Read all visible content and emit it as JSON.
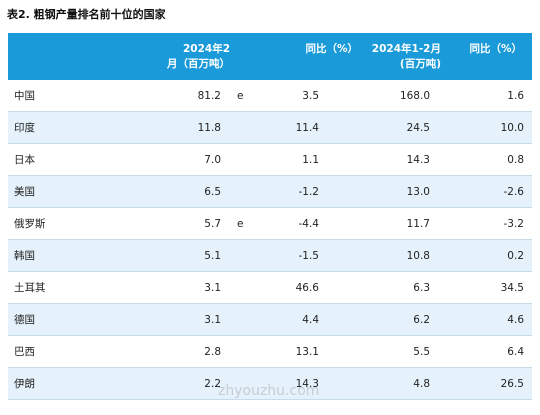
{
  "title": "表2. 粗钢产量排名前十位的国家",
  "headers": {
    "production": [
      "2024年2",
      "月（百万吨）"
    ],
    "yoy": "同比（%）",
    "ytd": [
      "2024年1-2月",
      "(百万吨)"
    ],
    "ytd_yoy": "同比（%）"
  },
  "rows": [
    {
      "country": "中国",
      "production": "81.2",
      "flag": "e",
      "yoy": "3.5",
      "ytd": "168.0",
      "ytd_yoy": "1.6"
    },
    {
      "country": "印度",
      "production": "11.8",
      "flag": "",
      "yoy": "11.4",
      "ytd": "24.5",
      "ytd_yoy": "10.0"
    },
    {
      "country": "日本",
      "production": "7.0",
      "flag": "",
      "yoy": "1.1",
      "ytd": "14.3",
      "ytd_yoy": "0.8"
    },
    {
      "country": "美国",
      "production": "6.5",
      "flag": "",
      "yoy": "-1.2",
      "ytd": "13.0",
      "ytd_yoy": "-2.6"
    },
    {
      "country": "俄罗斯",
      "production": "5.7",
      "flag": "e",
      "yoy": "-4.4",
      "ytd": "11.7",
      "ytd_yoy": "-3.2"
    },
    {
      "country": "韩国",
      "production": "5.1",
      "flag": "",
      "yoy": "-1.5",
      "ytd": "10.8",
      "ytd_yoy": "0.2"
    },
    {
      "country": "土耳其",
      "production": "3.1",
      "flag": "",
      "yoy": "46.6",
      "ytd": "6.3",
      "ytd_yoy": "34.5"
    },
    {
      "country": "德国",
      "production": "3.1",
      "flag": "",
      "yoy": "4.4",
      "ytd": "6.2",
      "ytd_yoy": "4.6"
    },
    {
      "country": "巴西",
      "production": "2.8",
      "flag": "",
      "yoy": "13.1",
      "ytd": "5.5",
      "ytd_yoy": "6.4"
    },
    {
      "country": "伊朗",
      "production": "2.2",
      "flag": "",
      "yoy": "14.3",
      "ytd": "4.8",
      "ytd_yoy": "26.5"
    }
  ],
  "watermark": "zhyouzhu.com",
  "colors": {
    "header_bg": "#1a9ad8",
    "alt_row_bg": "#e5f2fb",
    "border": "#c6dcea"
  }
}
